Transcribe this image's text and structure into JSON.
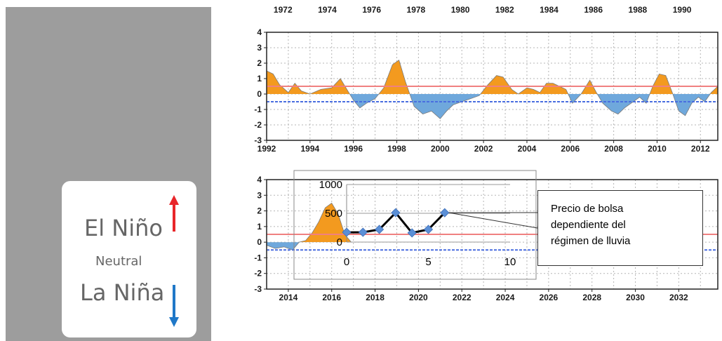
{
  "legend": {
    "el_nino": "El Niño",
    "neutral": "Neutral",
    "la_nina": "La Niña",
    "colors": {
      "el_nino_arrow": "#e8262a",
      "la_nina_arrow": "#1f78c8"
    }
  },
  "callout": {
    "lines": [
      "Precio de bolsa",
      "dependiente del",
      "régimen de lluvia"
    ]
  },
  "chart_data": [
    {
      "type": "area",
      "x_ticks": [
        1972,
        1974,
        1976,
        1978,
        1980,
        1982,
        1984,
        1986,
        1988,
        1990
      ],
      "xlim": [
        1971.2,
        1991.2
      ]
    },
    {
      "type": "area",
      "xlim": [
        1992,
        2012.8
      ],
      "ylim": [
        -3,
        4
      ],
      "y_ticks": [
        4,
        3,
        2,
        1,
        0,
        -1,
        -2,
        -3
      ],
      "x_ticks": [
        1992,
        1994,
        1996,
        1998,
        2000,
        2002,
        2004,
        2006,
        2008,
        2010,
        2012
      ],
      "thresholds": [
        0.5,
        -0.5
      ],
      "grid": true,
      "colors": {
        "positive": "#f39a1f",
        "negative": "#6fa8dc",
        "upper_threshold": "#f08080",
        "lower_threshold": "#4a6ee0"
      },
      "x": [
        1992.0,
        1992.3,
        1992.6,
        1993.0,
        1993.3,
        1993.6,
        1994.0,
        1994.5,
        1995.0,
        1995.4,
        1995.7,
        1996.0,
        1996.3,
        1996.6,
        1997.0,
        1997.4,
        1997.8,
        1998.1,
        1998.4,
        1998.8,
        1999.2,
        1999.6,
        2000.0,
        2000.3,
        2000.6,
        2001.0,
        2001.4,
        2001.8,
        2002.2,
        2002.6,
        2002.9,
        2003.3,
        2003.6,
        2004.0,
        2004.3,
        2004.6,
        2004.9,
        2005.2,
        2005.5,
        2005.8,
        2006.1,
        2006.5,
        2006.9,
        2007.2,
        2007.5,
        2007.9,
        2008.2,
        2008.5,
        2008.9,
        2009.2,
        2009.5,
        2009.8,
        2010.1,
        2010.4,
        2010.7,
        2011.0,
        2011.3,
        2011.6,
        2011.9,
        2012.2,
        2012.5,
        2012.8
      ],
      "y": [
        1.5,
        1.3,
        0.6,
        0.1,
        0.7,
        0.2,
        0.0,
        0.3,
        0.4,
        1.0,
        0.3,
        -0.4,
        -0.9,
        -0.6,
        -0.3,
        0.4,
        1.9,
        2.2,
        0.8,
        -0.8,
        -1.3,
        -1.1,
        -1.6,
        -1.1,
        -0.7,
        -0.5,
        -0.3,
        -0.1,
        0.6,
        1.2,
        1.1,
        0.3,
        0.0,
        0.4,
        0.3,
        0.1,
        0.7,
        0.7,
        0.5,
        0.3,
        -0.6,
        0.0,
        0.9,
        0.1,
        -0.6,
        -1.1,
        -1.3,
        -0.9,
        -0.5,
        -0.2,
        -0.6,
        0.5,
        1.3,
        1.2,
        0.1,
        -1.1,
        -1.4,
        -0.6,
        -0.2,
        -0.5,
        0.1,
        0.5
      ]
    },
    {
      "type": "area",
      "xlim": [
        2013,
        2033.8
      ],
      "ylim": [
        -3,
        4
      ],
      "y_ticks": [
        4,
        3,
        2,
        1,
        0,
        -1,
        -2,
        -3
      ],
      "x_ticks": [
        2014,
        2016,
        2018,
        2020,
        2022,
        2024,
        2026,
        2028,
        2030,
        2032
      ],
      "thresholds": [
        0.5,
        -0.5
      ],
      "grid": true,
      "x": [
        2013.0,
        2013.4,
        2013.8,
        2014.2,
        2014.5,
        2014.8,
        2015.1,
        2015.4,
        2015.7,
        2016.0,
        2016.3,
        2016.6,
        2016.9
      ],
      "y": [
        -0.2,
        -0.4,
        -0.3,
        -0.5,
        0.0,
        0.1,
        0.6,
        1.3,
        2.2,
        2.5,
        1.8,
        0.5,
        0.0
      ]
    },
    {
      "type": "line",
      "xlim": [
        0,
        10
      ],
      "ylim": [
        0,
        1000
      ],
      "x_ticks": [
        0,
        5,
        10
      ],
      "y_ticks": [
        1000,
        500,
        0
      ],
      "colors": {
        "line": "#000000",
        "marker": "#5b8fd6"
      },
      "x": [
        0,
        1,
        2,
        3,
        4,
        5,
        6
      ],
      "y": [
        170,
        170,
        220,
        510,
        160,
        220,
        510
      ]
    }
  ]
}
